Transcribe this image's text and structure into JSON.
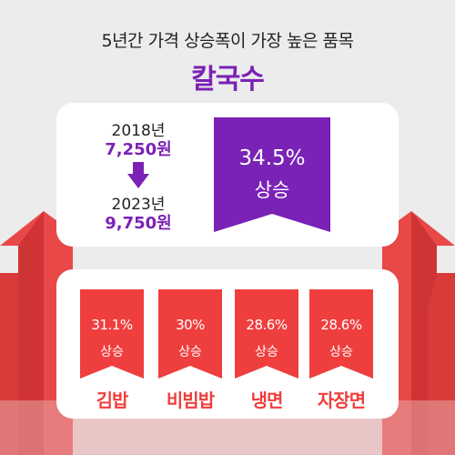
{
  "headline": "5년간 가격 상승폭이 가장 높은 품목",
  "featured": {
    "name": "칼국수",
    "year_from": "2018년",
    "price_from": "7,250원",
    "year_to": "2023년",
    "price_to": "9,750원",
    "increase_pct": "34.5%",
    "increase_label": "상승"
  },
  "others": [
    {
      "name": "김밥",
      "increase_pct": "31.1%",
      "increase_label": "상승"
    },
    {
      "name": "비빔밥",
      "increase_pct": "30%",
      "increase_label": "상승"
    },
    {
      "name": "냉면",
      "increase_pct": "28.6%",
      "increase_label": "상승"
    },
    {
      "name": "자장면",
      "increase_pct": "28.6%",
      "increase_label": "상승"
    }
  ],
  "colors": {
    "accent_purple": "#7a22b6",
    "accent_red": "#ef3e3e",
    "background": "#ececec"
  },
  "icons": {
    "down_arrow": "arrow-down-icon",
    "background_arrows": "rising-arrows-decoration"
  }
}
